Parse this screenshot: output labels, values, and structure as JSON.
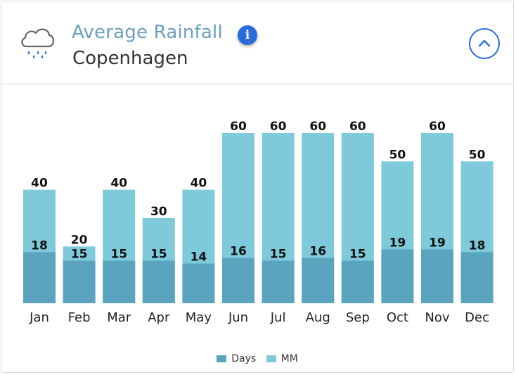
{
  "header": {
    "title": "Average Rainfall",
    "subtitle": "Copenhagen",
    "weather_icon": "rain-cloud-icon",
    "info_icon": "info-icon",
    "info_glyph": "i",
    "collapse_icon": "chevron-up-icon"
  },
  "colors": {
    "accent": "#2a6bdc",
    "days": "#5ba4bf",
    "mm": "#7ecadb",
    "title": "#6a9fbe"
  },
  "chart_data": {
    "type": "bar",
    "stacked": "overlay",
    "title": "Average Rainfall",
    "subtitle": "Copenhagen",
    "categories": [
      "Jan",
      "Feb",
      "Mar",
      "Apr",
      "May",
      "Jun",
      "Jul",
      "Aug",
      "Sep",
      "Oct",
      "Nov",
      "Dec"
    ],
    "series": [
      {
        "name": "Days",
        "values": [
          18,
          15,
          15,
          15,
          14,
          16,
          15,
          16,
          15,
          19,
          19,
          18
        ]
      },
      {
        "name": "MM",
        "values": [
          40,
          20,
          40,
          30,
          40,
          60,
          60,
          60,
          60,
          50,
          60,
          50
        ]
      }
    ],
    "legend_position": "bottom-center",
    "grid": false,
    "xlabel": "",
    "ylabel": ""
  }
}
